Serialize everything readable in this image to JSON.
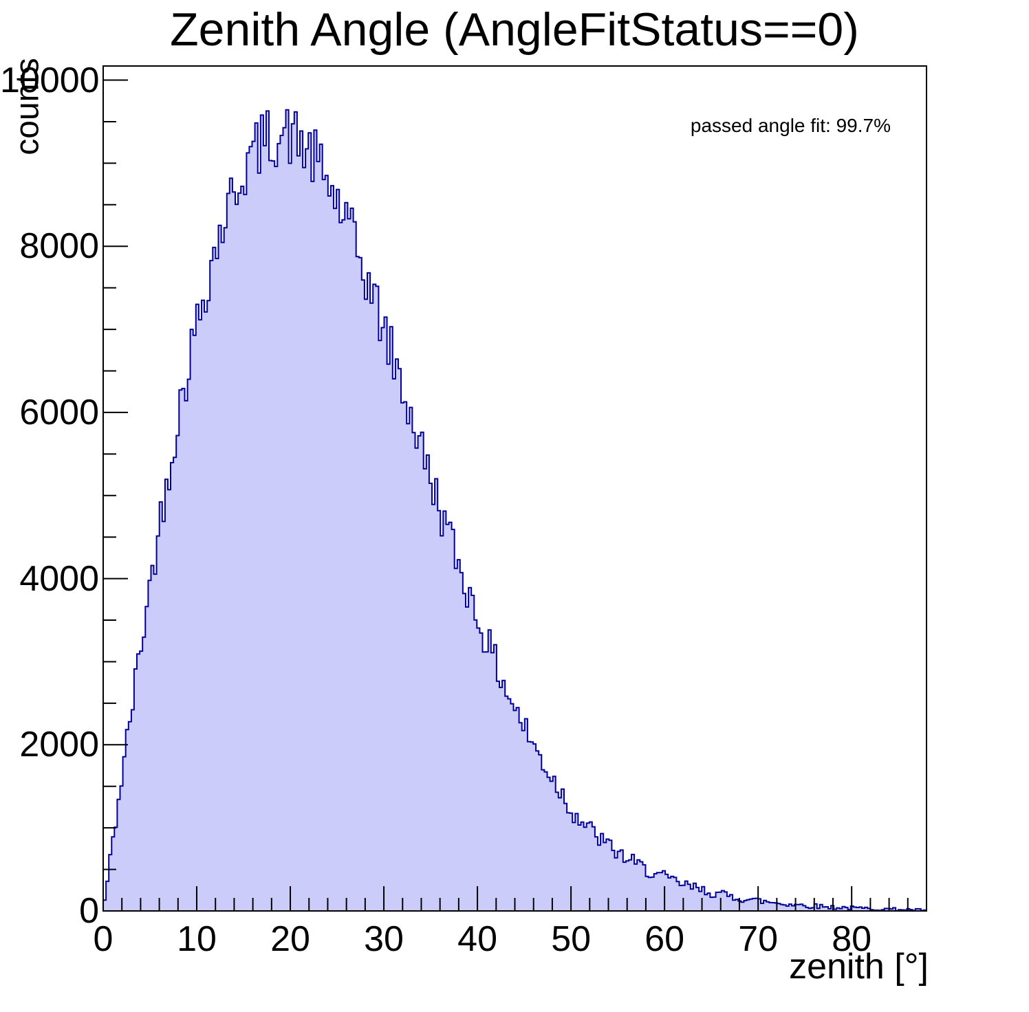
{
  "chart_data": {
    "type": "bar",
    "variant": "filled-step-histogram",
    "title": "Zenith Angle (AngleFitStatus==0)",
    "xlabel": "zenith [°]",
    "ylabel": "counts",
    "annotation": "passed angle fit: 99.7%",
    "grid": false,
    "legend_position": "none",
    "x_axis": {
      "range": [
        0,
        88
      ],
      "major_ticks": [
        0,
        10,
        20,
        30,
        40,
        50,
        60,
        70,
        80
      ],
      "minor_step": 2
    },
    "y_axis": {
      "range": [
        0,
        10170
      ],
      "major_ticks": [
        0,
        2000,
        4000,
        6000,
        8000,
        10000
      ],
      "minor_step": 500
    },
    "bin_width_deg": 0.3,
    "noise_sigma_scale": 4.0,
    "noise_seed": 42,
    "envelope_x_deg": [
      0,
      1,
      2,
      3,
      4,
      5,
      6,
      7,
      8,
      9,
      10,
      11,
      12,
      13,
      14,
      15,
      16,
      17,
      18,
      19,
      20,
      21,
      22,
      23,
      24,
      25,
      26,
      27,
      28,
      29,
      30,
      31,
      32,
      33,
      34,
      35,
      36,
      37,
      38,
      39,
      40,
      41,
      42,
      43,
      44,
      45,
      46,
      47,
      48,
      49,
      50,
      51,
      52,
      53,
      54,
      55,
      56,
      57,
      58,
      59,
      60,
      61,
      62,
      63,
      64,
      65,
      66,
      67,
      68,
      69,
      70,
      71,
      72,
      73,
      74,
      75,
      76,
      77,
      78,
      79,
      80,
      81,
      82,
      83,
      84,
      85,
      86,
      87,
      88
    ],
    "envelope_counts": [
      0,
      810,
      1614,
      2403,
      3174,
      3919,
      4631,
      5307,
      5941,
      6527,
      7064,
      7548,
      7975,
      8346,
      8658,
      8912,
      9106,
      9242,
      9323,
      9350,
      9325,
      9250,
      9131,
      8969,
      8769,
      8535,
      8271,
      7981,
      7669,
      7341,
      6998,
      6645,
      6287,
      5925,
      5564,
      5205,
      4852,
      4508,
      4172,
      3850,
      3540,
      3243,
      2963,
      2696,
      2445,
      2210,
      1992,
      1788,
      1601,
      1430,
      1230,
      1100,
      980,
      875,
      780,
      700,
      625,
      560,
      500,
      448,
      400,
      356,
      317,
      282,
      251,
      223,
      198,
      176,
      156,
      139,
      123,
      109,
      97,
      86,
      76,
      67,
      59,
      52,
      46,
      41,
      36,
      32,
      28,
      25,
      22,
      19,
      16,
      13,
      10
    ],
    "colors": {
      "fill": "#ccccfa",
      "line": "#000099",
      "axis": "#000000",
      "text": "#000000"
    }
  }
}
